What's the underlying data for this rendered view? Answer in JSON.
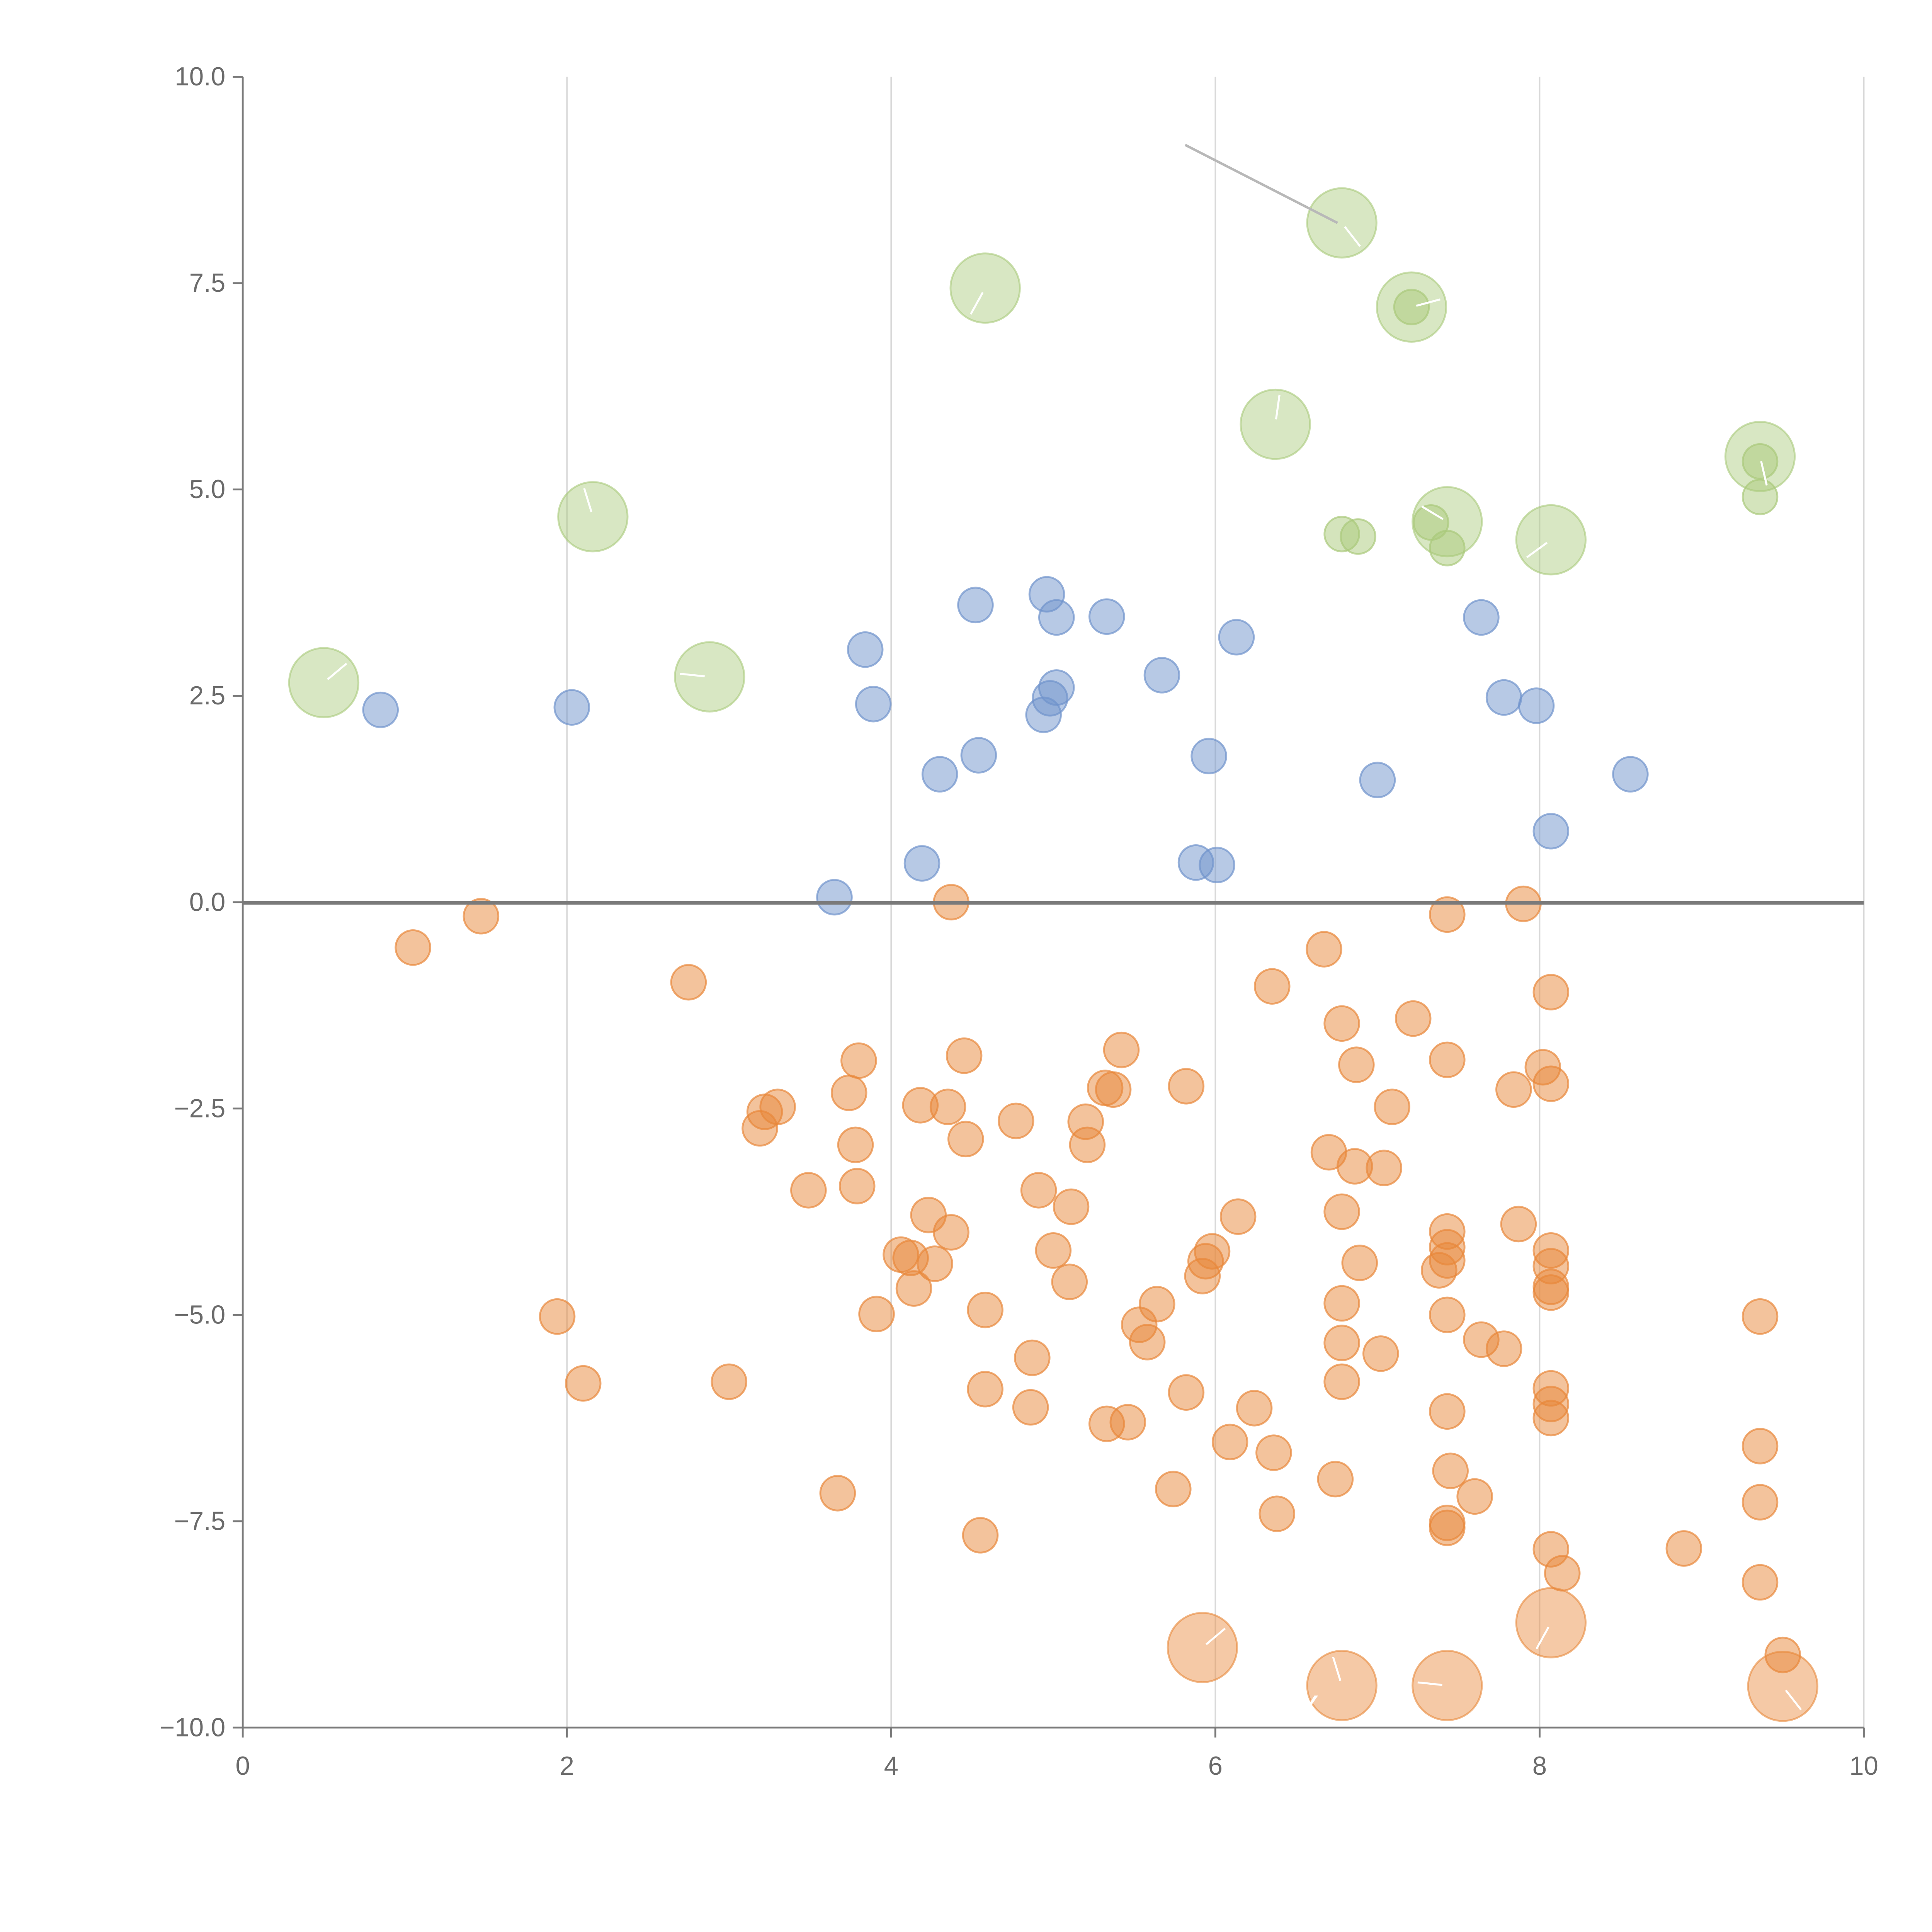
{
  "chart_data": {
    "type": "scatter",
    "title": "",
    "xlabel": "",
    "ylabel": "",
    "xlim": [
      0,
      10
    ],
    "ylim": [
      -10,
      10
    ],
    "x_ticks": [
      "0",
      "2",
      "4",
      "6",
      "8",
      "10"
    ],
    "y_ticks": [
      "10.0",
      "7.5",
      "5.0",
      "2.5",
      "0.0",
      "−2.5",
      "−5.0",
      "−7.5",
      "−10.0"
    ],
    "x_tick_values": [
      0,
      2,
      4,
      6,
      8,
      10
    ],
    "y_tick_values": [
      10,
      7.5,
      5,
      2.5,
      0,
      -2.5,
      -5,
      -7.5,
      -10
    ],
    "grid": "vertical",
    "zero_line": 0,
    "series": [
      {
        "name": "orange",
        "color": "#e8883a",
        "points": [
          [
            1.05,
            -0.55
          ],
          [
            1.47,
            -0.17
          ],
          [
            2.75,
            -0.97
          ],
          [
            4.37,
            0.0
          ],
          [
            7.43,
            -0.15
          ],
          [
            7.9,
            -0.02
          ],
          [
            6.67,
            -0.57
          ],
          [
            6.35,
            -1.02
          ],
          [
            8.07,
            -1.09
          ],
          [
            6.78,
            -1.47
          ],
          [
            7.22,
            -1.41
          ],
          [
            6.87,
            -1.97
          ],
          [
            7.43,
            -1.91
          ],
          [
            8.02,
            -2.0
          ],
          [
            8.07,
            -2.2
          ],
          [
            7.84,
            -2.27
          ],
          [
            7.09,
            -2.48
          ],
          [
            6.7,
            -3.03
          ],
          [
            6.86,
            -3.2
          ],
          [
            7.04,
            -3.22
          ],
          [
            3.8,
            -1.92
          ],
          [
            4.45,
            -1.86
          ],
          [
            5.42,
            -1.79
          ],
          [
            5.82,
            -2.23
          ],
          [
            5.32,
            -2.25
          ],
          [
            5.37,
            -2.27
          ],
          [
            3.74,
            -2.31
          ],
          [
            4.18,
            -2.46
          ],
          [
            4.35,
            -2.48
          ],
          [
            3.3,
            -2.48
          ],
          [
            3.22,
            -2.54
          ],
          [
            3.19,
            -2.74
          ],
          [
            4.77,
            -2.65
          ],
          [
            5.2,
            -2.66
          ],
          [
            4.46,
            -2.87
          ],
          [
            5.21,
            -2.94
          ],
          [
            3.78,
            -2.94
          ],
          [
            3.79,
            -3.44
          ],
          [
            3.49,
            -3.49
          ],
          [
            4.91,
            -3.49
          ],
          [
            5.11,
            -3.69
          ],
          [
            4.23,
            -3.79
          ],
          [
            4.37,
            -4.0
          ],
          [
            4.06,
            -4.27
          ],
          [
            4.12,
            -4.31
          ],
          [
            4.27,
            -4.38
          ],
          [
            4.14,
            -4.68
          ],
          [
            5.0,
            -4.22
          ],
          [
            5.1,
            -4.6
          ],
          [
            3.91,
            -4.99
          ],
          [
            4.58,
            -4.94
          ],
          [
            5.64,
            -4.87
          ],
          [
            5.53,
            -5.12
          ],
          [
            5.58,
            -5.33
          ],
          [
            4.87,
            -5.52
          ],
          [
            4.58,
            -5.9
          ],
          [
            4.86,
            -6.12
          ],
          [
            5.82,
            -5.94
          ],
          [
            5.33,
            -6.32
          ],
          [
            5.46,
            -6.3
          ],
          [
            6.24,
            -6.13
          ],
          [
            6.09,
            -6.54
          ],
          [
            6.36,
            -6.67
          ],
          [
            5.74,
            -7.11
          ],
          [
            6.38,
            -7.41
          ],
          [
            4.55,
            -7.67
          ],
          [
            3.67,
            -7.16
          ],
          [
            3.0,
            -5.81
          ],
          [
            2.1,
            -5.83
          ],
          [
            1.94,
            -5.02
          ],
          [
            5.98,
            -4.23
          ],
          [
            5.94,
            -4.35
          ],
          [
            5.92,
            -4.53
          ],
          [
            6.14,
            -3.81
          ],
          [
            6.78,
            -3.75
          ],
          [
            6.89,
            -4.37
          ],
          [
            6.78,
            -4.86
          ],
          [
            6.78,
            -5.34
          ],
          [
            7.02,
            -5.47
          ],
          [
            6.78,
            -5.81
          ],
          [
            6.74,
            -6.99
          ],
          [
            7.43,
            -3.99
          ],
          [
            7.43,
            -4.18
          ],
          [
            7.43,
            -4.34
          ],
          [
            7.38,
            -4.46
          ],
          [
            7.43,
            -5.0
          ],
          [
            7.64,
            -5.3
          ],
          [
            7.78,
            -5.41
          ],
          [
            7.43,
            -6.17
          ],
          [
            7.45,
            -6.89
          ],
          [
            7.6,
            -7.2
          ],
          [
            7.43,
            -7.52
          ],
          [
            7.43,
            -7.58
          ],
          [
            7.87,
            -3.9
          ],
          [
            8.07,
            -4.22
          ],
          [
            8.07,
            -4.41
          ],
          [
            8.07,
            -4.66
          ],
          [
            8.07,
            -4.73
          ],
          [
            8.07,
            -5.89
          ],
          [
            8.07,
            -6.08
          ],
          [
            8.07,
            -6.25
          ],
          [
            8.07,
            -7.84
          ],
          [
            8.14,
            -8.13
          ],
          [
            8.89,
            -7.83
          ],
          [
            9.36,
            -5.02
          ],
          [
            9.36,
            -6.59
          ],
          [
            9.36,
            -7.27
          ],
          [
            9.36,
            -8.24
          ],
          [
            9.5,
            -9.12
          ]
        ],
        "large_points": [
          [
            5.92,
            -9.03
          ],
          [
            6.78,
            -9.49
          ],
          [
            7.43,
            -9.49
          ],
          [
            8.07,
            -8.73
          ],
          [
            9.5,
            -9.5
          ]
        ]
      },
      {
        "name": "blue",
        "color": "#6f93cc",
        "points": [
          [
            0.85,
            2.33
          ],
          [
            2.03,
            2.36
          ],
          [
            3.65,
            0.06
          ],
          [
            4.19,
            0.47
          ],
          [
            4.3,
            1.55
          ],
          [
            4.54,
            1.78
          ],
          [
            3.84,
            3.06
          ],
          [
            3.89,
            2.4
          ],
          [
            4.52,
            3.6
          ],
          [
            4.96,
            3.73
          ],
          [
            5.02,
            3.45
          ],
          [
            5.33,
            3.46
          ],
          [
            5.02,
            2.6
          ],
          [
            4.98,
            2.47
          ],
          [
            4.94,
            2.27
          ],
          [
            5.67,
            2.75
          ],
          [
            5.96,
            1.77
          ],
          [
            6.13,
            3.21
          ],
          [
            5.88,
            0.48
          ],
          [
            6.01,
            0.45
          ],
          [
            7.0,
            1.48
          ],
          [
            7.64,
            3.45
          ],
          [
            7.78,
            2.48
          ],
          [
            7.98,
            2.38
          ],
          [
            8.56,
            1.55
          ],
          [
            8.07,
            0.86
          ]
        ]
      },
      {
        "name": "green",
        "color": "#a9c97a",
        "points": [
          [
            6.78,
            4.46
          ],
          [
            6.88,
            4.43
          ],
          [
            7.43,
            4.29
          ],
          [
            7.33,
            4.6
          ],
          [
            7.21,
            7.21
          ],
          [
            9.36,
            5.34
          ],
          [
            9.36,
            4.91
          ]
        ],
        "large_points": [
          [
            0.5,
            2.66
          ],
          [
            2.16,
            4.67
          ],
          [
            2.88,
            2.73
          ],
          [
            4.58,
            7.44
          ],
          [
            6.78,
            8.23
          ],
          [
            7.21,
            7.21
          ],
          [
            6.37,
            5.79
          ],
          [
            7.43,
            4.61
          ],
          [
            8.07,
            4.39
          ],
          [
            9.36,
            5.4
          ]
        ]
      }
    ],
    "annotations": [
      "x"
    ]
  }
}
